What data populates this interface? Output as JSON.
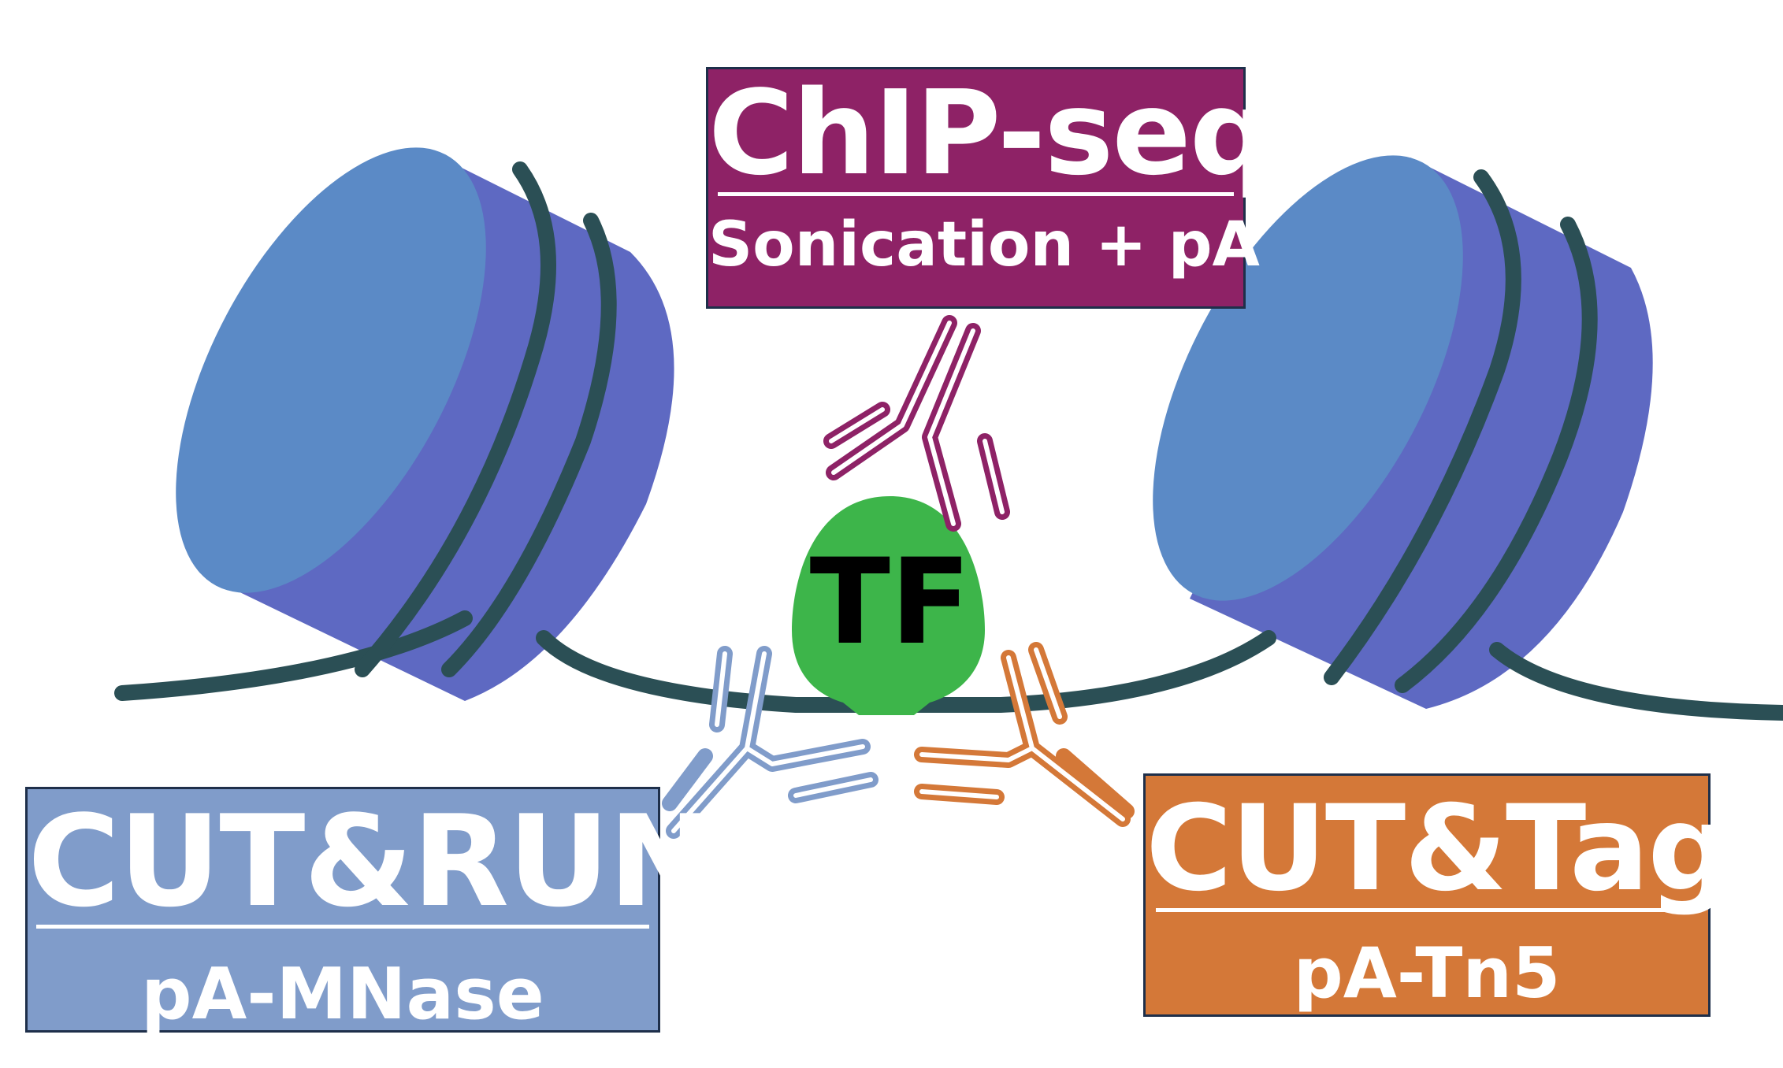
{
  "chip_seq": {
    "title": "ChIP-seq",
    "subtitle": "Sonication + pA",
    "color": "#8e2266"
  },
  "cut_run": {
    "title": "CUT&RUN",
    "subtitle": "pA-MNase",
    "color": "#809cca"
  },
  "cut_tag": {
    "title": "CUT&Tag",
    "subtitle": "pA-Tn5",
    "color": "#d47838"
  },
  "tf": {
    "label": "TF",
    "color": "#3db54a"
  },
  "colors": {
    "dna": "#2b4f55",
    "nucleosome_face": "#5b8ac6",
    "nucleosome_side": "#5e69c2",
    "antibody_chip": "#8e2266",
    "antibody_cutrun": "#809cca",
    "antibody_cuttag": "#d47838"
  }
}
